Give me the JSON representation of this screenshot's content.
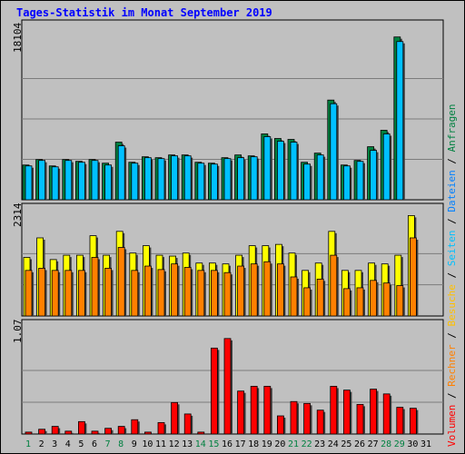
{
  "title": "Tages-Statistik im Monat September 2019",
  "colors": {
    "panel_bg": "#c0c0c0",
    "grid": "#7c7c7c",
    "title": "#0000ff",
    "weekday": "#000000",
    "weekend": "#008040",
    "anfragen": "#008040",
    "dateien": "#00c0ff",
    "seiten": "#00c0ff",
    "besuche": "#ffff00",
    "rechner": "#ff8000",
    "volumen": "#ff0000"
  },
  "legend": {
    "volumen": "Volumen",
    "rechner": "Rechner",
    "besuche": "Besuche",
    "seiten": "Seiten",
    "dateien": "Dateien",
    "anfragen": "Anfragen",
    "sep": " / "
  },
  "days": [
    "1",
    "2",
    "3",
    "4",
    "5",
    "6",
    "7",
    "8",
    "9",
    "10",
    "11",
    "12",
    "13",
    "14",
    "15",
    "16",
    "17",
    "18",
    "19",
    "20",
    "21",
    "22",
    "23",
    "24",
    "25",
    "26",
    "27",
    "28",
    "29",
    "30",
    "31"
  ],
  "weekend_days": [
    1,
    7,
    8,
    14,
    15,
    21,
    22,
    28,
    29
  ],
  "chart_data": [
    {
      "type": "bar",
      "ylabel": "18104",
      "ymax": 18104,
      "series": [
        {
          "name": "Anfragen",
          "values": [
            3800,
            4400,
            3700,
            4400,
            4200,
            4400,
            4000,
            6300,
            4100,
            4700,
            4600,
            4900,
            4900,
            4100,
            4000,
            4600,
            4900,
            4800,
            7200,
            6700,
            6600,
            4100,
            5100,
            10900,
            3800,
            4300,
            5800,
            7600,
            17800,
            null,
            null
          ]
        },
        {
          "name": "Dateien",
          "values": [
            3700,
            4300,
            3600,
            4300,
            4100,
            4300,
            3800,
            5900,
            4000,
            4600,
            4500,
            4800,
            4800,
            4000,
            3900,
            4500,
            4600,
            4700,
            6900,
            6400,
            6300,
            3900,
            4900,
            10500,
            3700,
            4200,
            5400,
            7200,
            17300,
            null,
            null
          ]
        }
      ]
    },
    {
      "type": "bar",
      "ylabel": "2314",
      "ymax": 2314,
      "series": [
        {
          "name": "Besuche",
          "values": [
            1350,
            1800,
            1300,
            1400,
            1400,
            1850,
            1400,
            1950,
            1450,
            1620,
            1400,
            1380,
            1450,
            1220,
            1220,
            1200,
            1400,
            1620,
            1620,
            1650,
            1450,
            1050,
            1220,
            1950,
            1050,
            1050,
            1220,
            1200,
            1400,
            2314,
            null
          ]
        },
        {
          "name": "Rechner",
          "values": [
            1050,
            1100,
            1050,
            1050,
            1050,
            1350,
            1100,
            1580,
            1050,
            1150,
            1070,
            1200,
            1120,
            1050,
            1050,
            1000,
            1150,
            1200,
            1250,
            1200,
            900,
            650,
            850,
            1400,
            630,
            650,
            820,
            760,
            700,
            1800,
            null
          ]
        }
      ]
    },
    {
      "type": "bar",
      "ylabel": "1.07",
      "ymax": 1.07,
      "series": [
        {
          "name": "Volumen",
          "values": [
            0.02,
            0.05,
            0.08,
            0.03,
            0.13,
            0.03,
            0.06,
            0.08,
            0.15,
            0.02,
            0.12,
            0.33,
            0.21,
            0.02,
            0.9,
            1.0,
            0.45,
            0.5,
            0.5,
            0.19,
            0.34,
            0.32,
            0.25,
            0.5,
            0.46,
            0.31,
            0.47,
            0.42,
            0.28,
            0.27,
            null
          ]
        }
      ]
    }
  ]
}
